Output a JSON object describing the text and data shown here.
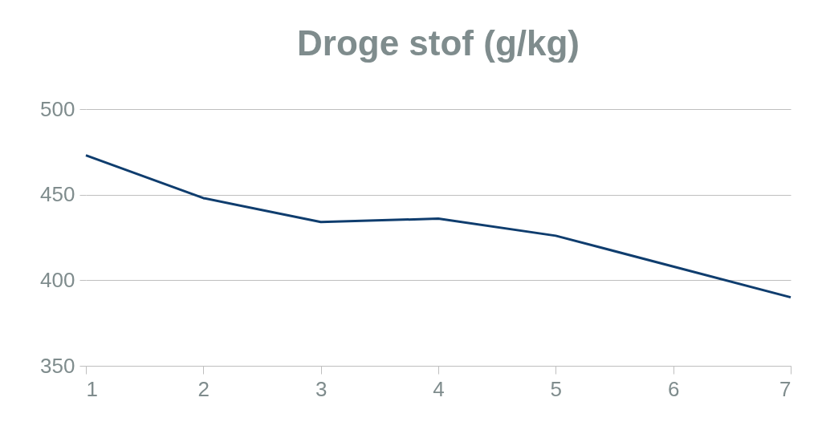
{
  "chart_data": {
    "type": "line",
    "title": "Droge stof (g/kg)",
    "x": [
      1,
      2,
      3,
      4,
      5,
      6,
      7
    ],
    "series": [
      {
        "color": "#0f3d6e",
        "values": [
          473,
          448,
          434,
          436,
          426,
          408,
          390
        ]
      }
    ],
    "xlim": [
      1,
      7
    ],
    "xticks": [
      1,
      2,
      3,
      4,
      5,
      6,
      7
    ],
    "ylim": [
      350,
      500
    ],
    "yticks": [
      350,
      400,
      450,
      500
    ],
    "grid": "y",
    "marker": "none",
    "line_style": "solid"
  }
}
